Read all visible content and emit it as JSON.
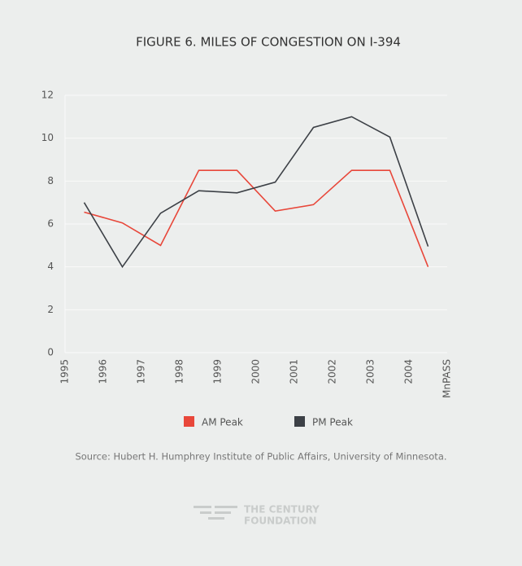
{
  "chart_data": {
    "type": "line",
    "title": "FIGURE 6. MILES OF CONGESTION ON I-394",
    "x": [
      0.5,
      1.5,
      2.5,
      3.5,
      4.5,
      5.5,
      6.5,
      7.5,
      8.5,
      9.5
    ],
    "xlim": [
      0,
      10
    ],
    "xticks": [
      {
        "value": 0,
        "label": "1995"
      },
      {
        "value": 1,
        "label": "1996"
      },
      {
        "value": 2,
        "label": "1997"
      },
      {
        "value": 3,
        "label": "1998"
      },
      {
        "value": 4,
        "label": "1999"
      },
      {
        "value": 5,
        "label": "2000"
      },
      {
        "value": 6,
        "label": "2001"
      },
      {
        "value": 7,
        "label": "2002"
      },
      {
        "value": 8,
        "label": "2003"
      },
      {
        "value": 9,
        "label": "2004"
      },
      {
        "value": 10,
        "label": "MnPASS"
      }
    ],
    "ylim": [
      0,
      12
    ],
    "yticks": [
      0,
      2,
      4,
      6,
      8,
      10,
      12
    ],
    "grid": true,
    "series": [
      {
        "name": "AM Peak",
        "color": "#e8473a",
        "values": [
          6.55,
          6.05,
          5.0,
          8.5,
          8.5,
          6.6,
          6.9,
          8.5,
          8.5,
          4.0
        ]
      },
      {
        "name": "PM Peak",
        "color": "#3c4046",
        "values": [
          7.0,
          4.0,
          6.5,
          7.55,
          7.45,
          7.95,
          10.5,
          11.0,
          10.05,
          4.95
        ]
      }
    ],
    "source": "Source: Hubert H. Humphrey Institute of Public Affairs, University of Minnesota."
  },
  "logo": {
    "line1": "THE CENTURY",
    "line2": "FOUNDATION"
  }
}
